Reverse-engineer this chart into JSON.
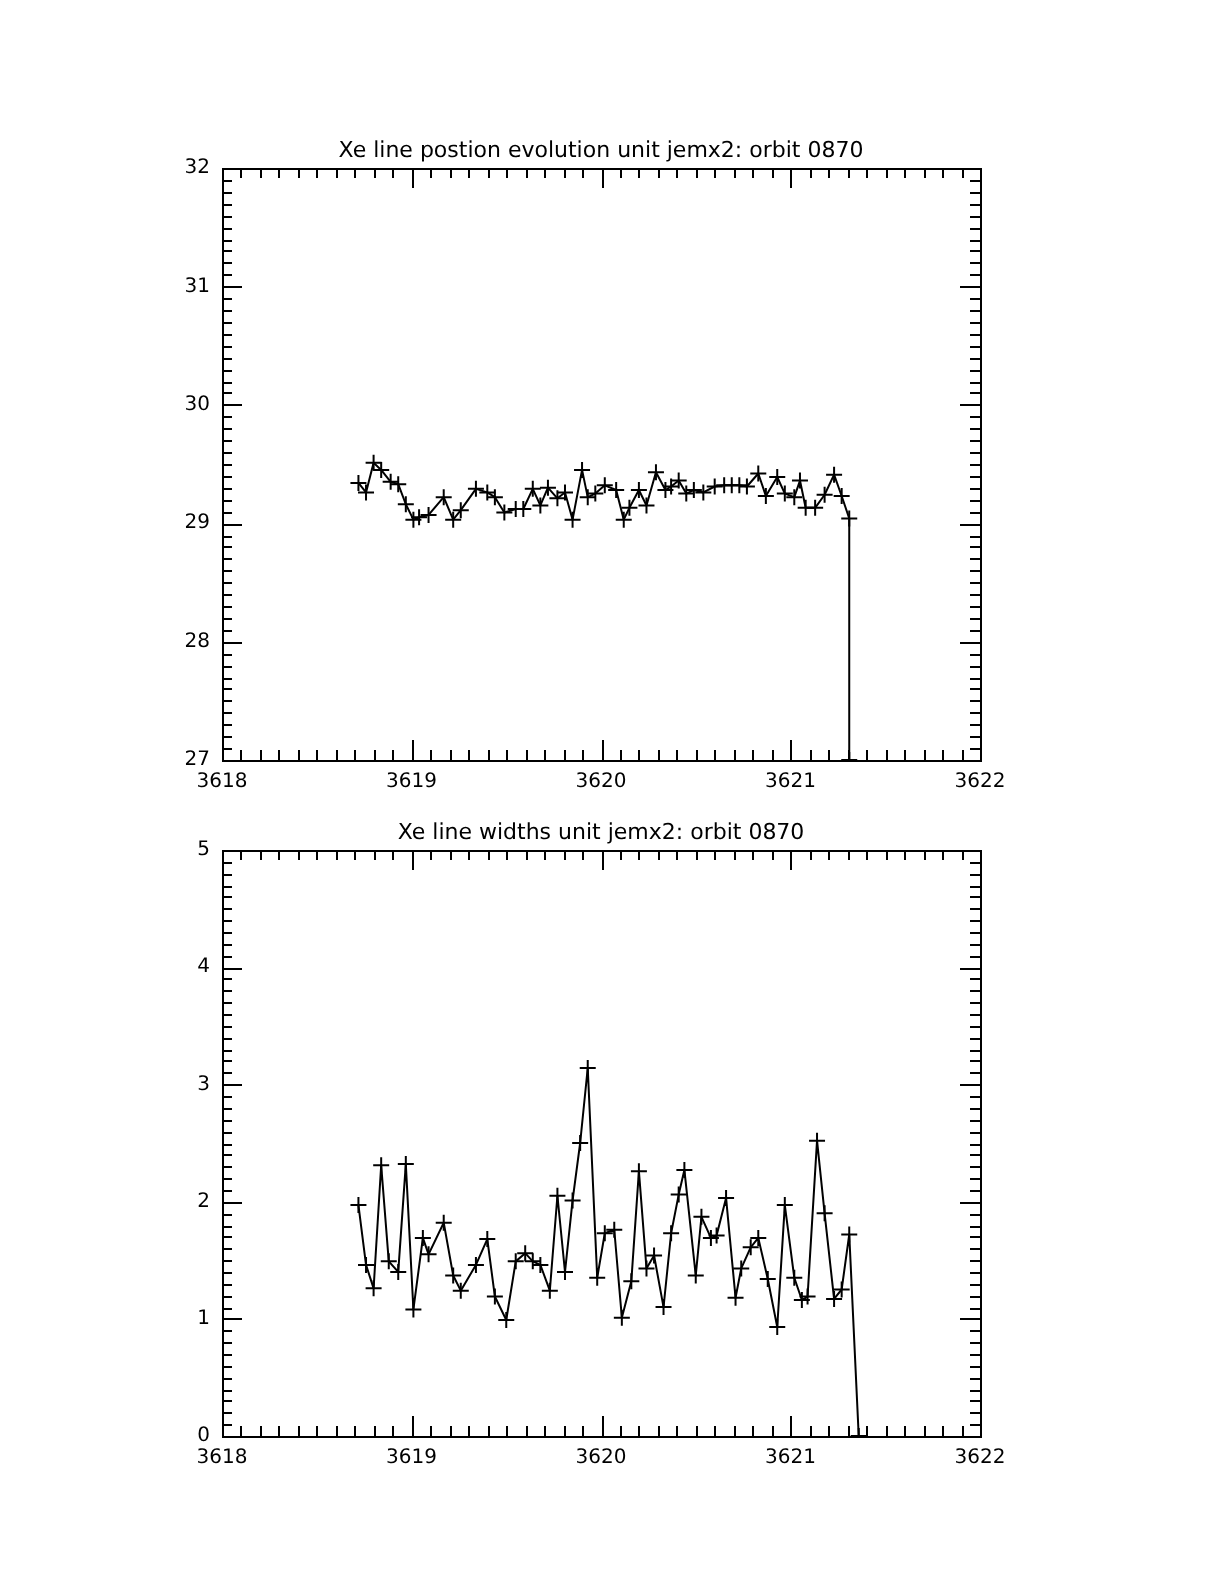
{
  "chart_data": [
    {
      "type": "line",
      "title": "Xe line postion evolution unit jemx2: orbit 0870",
      "marker": "cross",
      "grid": false,
      "legend": false,
      "xlim": [
        3618,
        3622
      ],
      "xticks": [
        3618,
        3619,
        3620,
        3621,
        3622
      ],
      "ylim": [
        27,
        32
      ],
      "yticks": [
        27,
        28,
        29,
        30,
        31,
        32
      ],
      "series": [
        {
          "color": "#000000",
          "x": [
            3618.72,
            3618.76,
            3618.8,
            3618.84,
            3618.89,
            3618.93,
            3618.97,
            3619.01,
            3619.04,
            3619.09,
            3619.17,
            3619.22,
            3619.26,
            3619.34,
            3619.4,
            3619.44,
            3619.49,
            3619.55,
            3619.59,
            3619.64,
            3619.68,
            3619.72,
            3619.77,
            3619.81,
            3619.85,
            3619.9,
            3619.93,
            3619.97,
            3620.02,
            3620.08,
            3620.12,
            3620.15,
            3620.2,
            3620.24,
            3620.29,
            3620.34,
            3620.37,
            3620.41,
            3620.45,
            3620.49,
            3620.54,
            3620.6,
            3620.65,
            3620.69,
            3620.73,
            3620.77,
            3620.83,
            3620.87,
            3620.93,
            3620.97,
            3621.02,
            3621.05,
            3621.08,
            3621.13,
            3621.18,
            3621.23,
            3621.27,
            3621.31,
            3621.31
          ],
          "values": [
            29.34,
            29.26,
            29.51,
            29.45,
            29.35,
            29.33,
            29.16,
            29.03,
            29.05,
            29.07,
            29.22,
            29.03,
            29.11,
            29.29,
            29.26,
            29.22,
            29.09,
            29.12,
            29.12,
            29.29,
            29.15,
            29.3,
            29.21,
            29.26,
            29.03,
            29.45,
            29.22,
            29.25,
            29.32,
            29.28,
            29.03,
            29.13,
            29.28,
            29.15,
            29.43,
            29.28,
            29.31,
            29.36,
            29.25,
            29.28,
            29.26,
            29.31,
            29.32,
            29.32,
            29.32,
            29.31,
            29.42,
            29.23,
            29.39,
            29.25,
            29.22,
            29.36,
            29.13,
            29.13,
            29.24,
            29.41,
            29.23,
            29.04,
            27
          ]
        }
      ]
    },
    {
      "type": "line",
      "title": "Xe line widths unit jemx2: orbit 0870",
      "marker": "cross",
      "grid": false,
      "legend": false,
      "xlim": [
        3618,
        3622
      ],
      "xticks": [
        3618,
        3619,
        3620,
        3621,
        3622
      ],
      "ylim": [
        0,
        5
      ],
      "yticks": [
        0,
        1,
        2,
        3,
        4,
        5
      ],
      "series": [
        {
          "color": "#000000",
          "x": [
            3618.72,
            3618.76,
            3618.8,
            3618.84,
            3618.88,
            3618.93,
            3618.97,
            3619.01,
            3619.06,
            3619.09,
            3619.17,
            3619.22,
            3619.26,
            3619.34,
            3619.4,
            3619.44,
            3619.5,
            3619.55,
            3619.6,
            3619.64,
            3619.68,
            3619.73,
            3619.77,
            3619.81,
            3619.85,
            3619.89,
            3619.93,
            3619.98,
            3620.02,
            3620.07,
            3620.11,
            3620.16,
            3620.2,
            3620.24,
            3620.28,
            3620.33,
            3620.37,
            3620.41,
            3620.44,
            3620.5,
            3620.53,
            3620.58,
            3620.61,
            3620.66,
            3620.71,
            3620.74,
            3620.79,
            3620.83,
            3620.88,
            3620.93,
            3620.97,
            3621.02,
            3621.06,
            3621.09,
            3621.14,
            3621.18,
            3621.23,
            3621.27,
            3621.31,
            3621.36
          ],
          "values": [
            1.97,
            1.46,
            1.26,
            2.31,
            1.49,
            1.4,
            2.32,
            1.08,
            1.69,
            1.55,
            1.82,
            1.37,
            1.24,
            1.46,
            1.68,
            1.19,
            0.99,
            1.49,
            1.56,
            1.49,
            1.46,
            1.24,
            2.05,
            1.4,
            2.01,
            2.5,
            3.14,
            1.35,
            1.73,
            1.76,
            1.01,
            1.32,
            2.26,
            1.43,
            1.54,
            1.1,
            1.73,
            2.06,
            2.27,
            1.37,
            1.87,
            1.69,
            1.71,
            2.03,
            1.18,
            1.43,
            1.61,
            1.69,
            1.34,
            0.93,
            1.97,
            1.35,
            1.16,
            1.19,
            2.52,
            1.9,
            1.17,
            1.25,
            1.72,
            0
          ]
        }
      ]
    }
  ]
}
